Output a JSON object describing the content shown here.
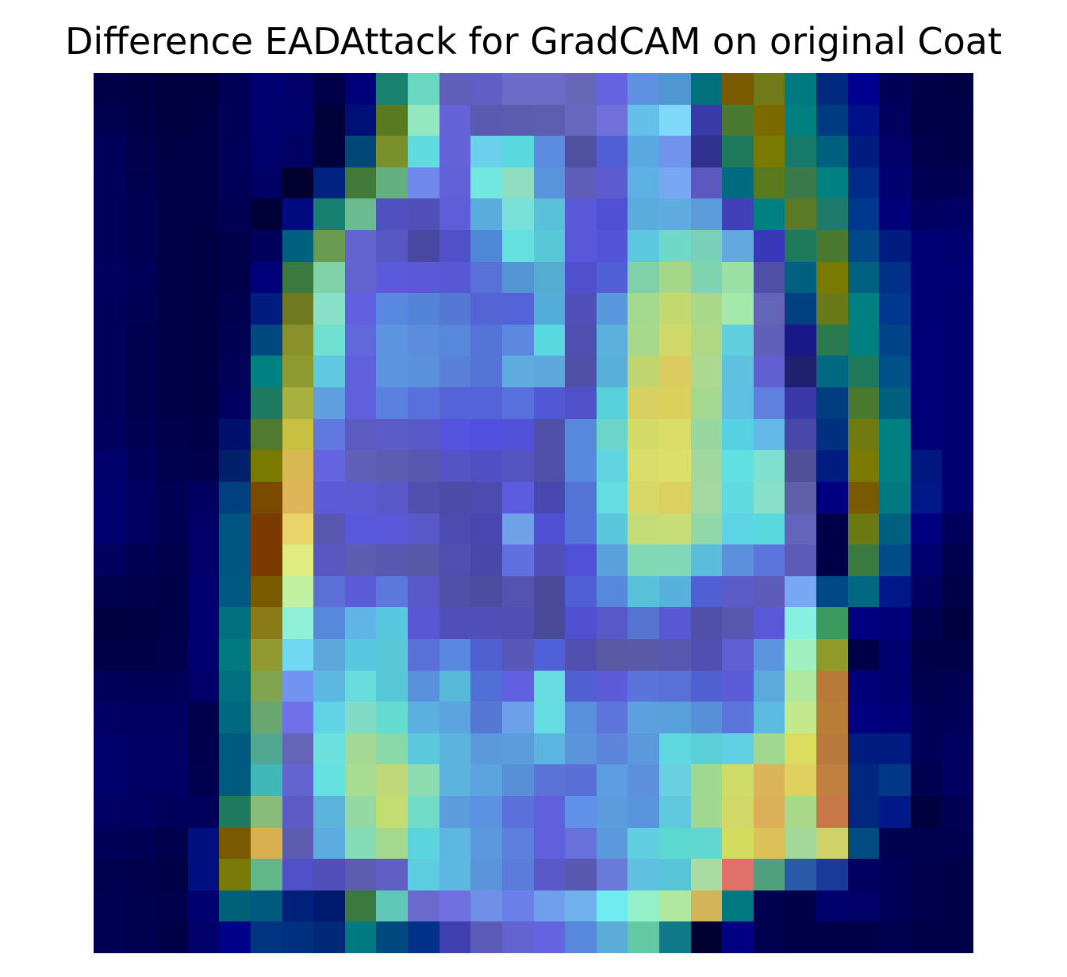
{
  "title": "Difference EADAttack for GradCAM on original Coat",
  "image": {
    "description_kind": "heatmap overlay",
    "grid_size": 28,
    "colormap": "jet-blended"
  },
  "rows": [
    [
      "#000048",
      "#000044",
      "#00003e",
      "#000040",
      "#000058",
      "#000070",
      "#000068",
      "#00004a",
      "#00007a",
      "#1a8070",
      "#6ad8c0",
      "#6060b8",
      "#6060c4",
      "#6c6cc8",
      "#6c6cc8",
      "#6868b8",
      "#6464e0",
      "#6090e0",
      "#5096d0",
      "#00707a",
      "#7a5a00",
      "#707a18",
      "#007a80",
      "#002a80",
      "#000090",
      "#000058",
      "#000048",
      "#000044"
    ],
    [
      "#000050",
      "#000048",
      "#000040",
      "#000044",
      "#000058",
      "#000070",
      "#00006c",
      "#00003a",
      "#001078",
      "#5a7a20",
      "#94e8c0",
      "#6464d8",
      "#5a5ab0",
      "#5c5cb0",
      "#5e5eb0",
      "#6868c0",
      "#7070d8",
      "#64c0e8",
      "#80d8f8",
      "#3a3aa8",
      "#4a7a30",
      "#7a6a00",
      "#008080",
      "#003a80",
      "#001088",
      "#00005e",
      "#000048",
      "#000048"
    ],
    [
      "#00005a",
      "#00004c",
      "#000044",
      "#000048",
      "#000058",
      "#00006c",
      "#000062",
      "#00003c",
      "#004878",
      "#7a902a",
      "#60dce0",
      "#6464d8",
      "#6ad0ec",
      "#5ad8e0",
      "#5c8ce0",
      "#5050a0",
      "#5060d4",
      "#5aa8e0",
      "#7094ec",
      "#30308e",
      "#1e7a5a",
      "#7a7a00",
      "#187a6a",
      "#006080",
      "#001c80",
      "#000068",
      "#00004c",
      "#000048"
    ],
    [
      "#00005c",
      "#000050",
      "#000048",
      "#000048",
      "#000058",
      "#000064",
      "#000030",
      "#002280",
      "#427a3a",
      "#64b080",
      "#7088ec",
      "#6060d8",
      "#70e8e0",
      "#90dcc0",
      "#5894dc",
      "#5e5eb8",
      "#5c5cd0",
      "#5cb0e4",
      "#78a8f4",
      "#5c58c0",
      "#006a80",
      "#5a7a20",
      "#3a7a4a",
      "#008080",
      "#002a88",
      "#000070",
      "#000054",
      "#000054"
    ],
    [
      "#00005c",
      "#000054",
      "#000048",
      "#000048",
      "#000054",
      "#000038",
      "#000a80",
      "#188070",
      "#6abc90",
      "#5050c0",
      "#5050b8",
      "#5e5ed8",
      "#5aacdc",
      "#78e0d8",
      "#58c0d8",
      "#5a5ad8",
      "#5050d4",
      "#5aacdc",
      "#60ace0",
      "#5c9cdc",
      "#4040b8",
      "#008080",
      "#5a7a28",
      "#1e7a6a",
      "#003890",
      "#00007a",
      "#000060",
      "#000064"
    ],
    [
      "#00005c",
      "#000054",
      "#000048",
      "#000044",
      "#00004a",
      "#00005c",
      "#006080",
      "#6a9a50",
      "#6464d0",
      "#5858c4",
      "#4848a0",
      "#5050c8",
      "#5088d8",
      "#64e0e0",
      "#58c8d8",
      "#5858d8",
      "#5454d8",
      "#5cc8e0",
      "#70d8c8",
      "#78d0b8",
      "#64a8e0",
      "#3838b8",
      "#1e7a5a",
      "#4a7a30",
      "#004888",
      "#001c80",
      "#000074",
      "#000070"
    ],
    [
      "#000060",
      "#000058",
      "#000048",
      "#000044",
      "#00004a",
      "#00007a",
      "#3a7a40",
      "#80d0a8",
      "#6464d0",
      "#5a5adc",
      "#5a5ad8",
      "#5858d4",
      "#5870d8",
      "#5294d4",
      "#54acd0",
      "#5050cc",
      "#5060d4",
      "#80d0a8",
      "#a4d888",
      "#80d4b0",
      "#9ce0a8",
      "#5050a8",
      "#006080",
      "#7a7a00",
      "#006080",
      "#003088",
      "#000074",
      "#000074"
    ],
    [
      "#00005c",
      "#000054",
      "#000048",
      "#000044",
      "#000050",
      "#001c80",
      "#707a20",
      "#88e0c8",
      "#6060e0",
      "#5888e0",
      "#5484d8",
      "#5478d4",
      "#5464d4",
      "#5464d8",
      "#54acd8",
      "#5050b8",
      "#5898dc",
      "#a4d88c",
      "#c4d870",
      "#a8d888",
      "#a4e8ac",
      "#6464b8",
      "#004080",
      "#6a7a18",
      "#008080",
      "#003890",
      "#000074",
      "#000070"
    ],
    [
      "#00005c",
      "#000050",
      "#000048",
      "#000044",
      "#000054",
      "#004880",
      "#8a902a",
      "#70e0d0",
      "#6068dc",
      "#5c94e0",
      "#5c8cdc",
      "#5888dc",
      "#5474d8",
      "#5c88e0",
      "#5ad8e0",
      "#5050b0",
      "#5cb0dc",
      "#a8d88c",
      "#d0d868",
      "#b0d884",
      "#60d0e0",
      "#6060b8",
      "#181888",
      "#2a7a50",
      "#008080",
      "#004488",
      "#000078",
      "#000070"
    ],
    [
      "#00005c",
      "#000050",
      "#000048",
      "#000044",
      "#000058",
      "#008080",
      "#8c9a30",
      "#60c8e0",
      "#6060dc",
      "#5c94e0",
      "#5a90dc",
      "#5a80d8",
      "#5474d8",
      "#60ace0",
      "#5ca8dc",
      "#5050a8",
      "#58b0d8",
      "#c0d470",
      "#dccc60",
      "#acd890",
      "#60c0e0",
      "#6060d0",
      "#202070",
      "#006880",
      "#1e7a5a",
      "#00508a",
      "#000078",
      "#000070"
    ],
    [
      "#00005c",
      "#000050",
      "#000048",
      "#000044",
      "#000060",
      "#1e7a60",
      "#a8b040",
      "#60a0e0",
      "#6060dc",
      "#5a80e0",
      "#5870dc",
      "#5464d8",
      "#5464d8",
      "#5870dc",
      "#5058d4",
      "#5050c8",
      "#58d0dc",
      "#d8d060",
      "#dcd05c",
      "#a4d890",
      "#60c0e4",
      "#6080e0",
      "#3838a8",
      "#003c80",
      "#4a7a30",
      "#006080",
      "#000078",
      "#000070"
    ],
    [
      "#000060",
      "#000054",
      "#00004c",
      "#000048",
      "#00106c",
      "#507a30",
      "#c8c040",
      "#6078e0",
      "#5c5cc0",
      "#5c5cc8",
      "#5858c8",
      "#5454e0",
      "#5050e0",
      "#5050d8",
      "#5050a8",
      "#5888dc",
      "#6cd4c8",
      "#d4dc68",
      "#dcdc68",
      "#98d8a0",
      "#58d0e4",
      "#64b8e8",
      "#4848a8",
      "#003080",
      "#707a10",
      "#008080",
      "#000078",
      "#000070"
    ],
    [
      "#00006a",
      "#00005a",
      "#000050",
      "#00004c",
      "#00206c",
      "#7a7a00",
      "#d8b850",
      "#6464e0",
      "#6060b8",
      "#5c5cb0",
      "#5858b0",
      "#5454c4",
      "#5050c4",
      "#5454c0",
      "#5050a8",
      "#5888dc",
      "#60d4e0",
      "#d8dc68",
      "#dce068",
      "#a0d8a0",
      "#60e0e0",
      "#80e0d0",
      "#505098",
      "#001c80",
      "#7a7a00",
      "#008080",
      "#001880",
      "#000070"
    ],
    [
      "#000070",
      "#000060",
      "#000054",
      "#000060",
      "#004080",
      "#7a4a00",
      "#e0b458",
      "#5c5cd8",
      "#5c5cd4",
      "#5858c8",
      "#5050b0",
      "#4c4ca8",
      "#4c4cb0",
      "#5c5ce0",
      "#4848b0",
      "#5474d8",
      "#64dce0",
      "#d8d868",
      "#dcd060",
      "#a4d8a0",
      "#60dce0",
      "#88e0c8",
      "#6060a8",
      "#000080",
      "#7a5a00",
      "#007a80",
      "#001888",
      "#000070"
    ],
    [
      "#000070",
      "#000060",
      "#000054",
      "#000068",
      "#005680",
      "#7a3a00",
      "#e8d468",
      "#5858b0",
      "#5858dc",
      "#5858d8",
      "#5858c8",
      "#4c4cb0",
      "#4848b0",
      "#70a0e8",
      "#5050d4",
      "#5474dc",
      "#5ac8dc",
      "#c4dc78",
      "#c8dc78",
      "#90d8a8",
      "#5cd4e4",
      "#5ad8e0",
      "#6464bc",
      "#000048",
      "#6a7a10",
      "#006080",
      "#000080",
      "#00005c"
    ],
    [
      "#000060",
      "#000054",
      "#00004c",
      "#000068",
      "#005680",
      "#7a3a00",
      "#e0ec80",
      "#5858c0",
      "#5c5cb0",
      "#5858b0",
      "#5858a8",
      "#5050b0",
      "#4848a8",
      "#6070e0",
      "#5050b8",
      "#5050d8",
      "#5aa0dc",
      "#80d8b4",
      "#80d8b8",
      "#5cbcdc",
      "#5c90dc",
      "#5c74dc",
      "#5c5cb8",
      "#000048",
      "#3a7a40",
      "#004c88",
      "#000070",
      "#000050"
    ],
    [
      "#000050",
      "#00004c",
      "#000048",
      "#000070",
      "#005880",
      "#7a5a00",
      "#c0f0a0",
      "#5c70d8",
      "#5c5cd8",
      "#5c78dc",
      "#5858c8",
      "#5050a8",
      "#4c4ca0",
      "#5454b0",
      "#4a4a98",
      "#5060d4",
      "#5888dc",
      "#58c0d8",
      "#58b0dc",
      "#5060d4",
      "#5c5cc8",
      "#5c5cb8",
      "#78a8f4",
      "#004888",
      "#006880",
      "#001888",
      "#000060",
      "#000048"
    ],
    [
      "#000040",
      "#000044",
      "#00004a",
      "#000070",
      "#007080",
      "#8a7a18",
      "#90f0d8",
      "#5888dc",
      "#60b4e8",
      "#58c8e0",
      "#5858d4",
      "#5050b8",
      "#5050b8",
      "#5050b4",
      "#4a4a98",
      "#5050d0",
      "#5858c8",
      "#5474d0",
      "#5858d4",
      "#5050a8",
      "#5858b0",
      "#5858d8",
      "#88f0e0",
      "#3a9a60",
      "#000080",
      "#000078",
      "#000050",
      "#000040"
    ],
    [
      "#000048",
      "#000048",
      "#00004c",
      "#000070",
      "#007a80",
      "#909a30",
      "#70d8f0",
      "#5ca8dc",
      "#58c8e0",
      "#58c8d8",
      "#5870d8",
      "#5888e0",
      "#5060d0",
      "#5858b8",
      "#5060d8",
      "#5050b0",
      "#5a5aa4",
      "#5a5aa8",
      "#5858b0",
      "#5050b0",
      "#6060d4",
      "#5c94e0",
      "#a0f0c0",
      "#909a28",
      "#000048",
      "#000070",
      "#000048",
      "#000048"
    ],
    [
      "#00005a",
      "#000058",
      "#000058",
      "#000068",
      "#007080",
      "#80a450",
      "#7094f0",
      "#5cb8e0",
      "#68dcdc",
      "#58c8d8",
      "#5890dc",
      "#58b8d8",
      "#5070d8",
      "#6060e0",
      "#68dce0",
      "#5060d0",
      "#5c5cd8",
      "#5a74dc",
      "#5870d8",
      "#5060d0",
      "#5c5cd8",
      "#5caadc",
      "#b0e8a0",
      "#b87a38",
      "#000078",
      "#000070",
      "#000050",
      "#000054"
    ],
    [
      "#000064",
      "#000060",
      "#000060",
      "#00004c",
      "#006880",
      "#68a870",
      "#7070e8",
      "#60d4e4",
      "#80dcc4",
      "#64dcd0",
      "#5cb0e0",
      "#5ca4e0",
      "#5478d4",
      "#6ca0e8",
      "#64dce0",
      "#5890dc",
      "#5c74dc",
      "#5ca0e0",
      "#58a0dc",
      "#5890d8",
      "#5c74dc",
      "#5cbce0",
      "#c4e88c",
      "#b87e38",
      "#000080",
      "#000078",
      "#000058",
      "#000058"
    ],
    [
      "#00006c",
      "#000064",
      "#000064",
      "#00004c",
      "#005a80",
      "#50a890",
      "#6464b8",
      "#6ce0dc",
      "#a4d894",
      "#88d8a8",
      "#5cc8dc",
      "#5cb4dc",
      "#5c98dc",
      "#5c9cdc",
      "#5cb4e0",
      "#5c94dc",
      "#5c84d8",
      "#5c98dc",
      "#60d8e0",
      "#5cd0d8",
      "#60d0e4",
      "#a0d890",
      "#dcdc60",
      "#b87a3c",
      "#001c80",
      "#001c80",
      "#000058",
      "#000060"
    ],
    [
      "#00006c",
      "#000064",
      "#000064",
      "#000050",
      "#005a80",
      "#40b8b8",
      "#6464d0",
      "#64e0e0",
      "#a8dc90",
      "#c0d878",
      "#8cdcb0",
      "#5cb4dc",
      "#5ca4e0",
      "#5890d8",
      "#5c74d8",
      "#5a6ed8",
      "#5c9ce0",
      "#5c90dc",
      "#68d0e0",
      "#a0d890",
      "#d0dc68",
      "#dcb458",
      "#e0d060",
      "#c08040",
      "#002880",
      "#003888",
      "#000050",
      "#000060"
    ],
    [
      "#000064",
      "#000060",
      "#00005c",
      "#00005c",
      "#207a60",
      "#88bc78",
      "#5c5cc4",
      "#5cb4dc",
      "#94d8a4",
      "#c4dc74",
      "#70dcc8",
      "#5c9cdc",
      "#5c90e0",
      "#5c70dc",
      "#6060dc",
      "#6090e8",
      "#5c9cdc",
      "#5894dc",
      "#60c8dc",
      "#a0d890",
      "#d0d868",
      "#dcb058",
      "#a8d888",
      "#c87848",
      "#002880",
      "#001888",
      "#000040",
      "#000054"
    ],
    [
      "#000058",
      "#000054",
      "#00004c",
      "#001080",
      "#7a5a00",
      "#d8b050",
      "#5c5cb0",
      "#5cace0",
      "#84dcb8",
      "#a4d88c",
      "#5cd4e0",
      "#5cb8e0",
      "#5c98dc",
      "#5c80dc",
      "#6060dc",
      "#6870dc",
      "#5c98dc",
      "#60d0e0",
      "#5cd8d0",
      "#60d8d0",
      "#d4dc60",
      "#dcc058",
      "#a4d898",
      "#d0d468",
      "#004c80",
      "#000050",
      "#000050",
      "#000050"
    ],
    [
      "#000050",
      "#00004c",
      "#000048",
      "#001080",
      "#7a7a08",
      "#60b888",
      "#5050c8",
      "#5050b8",
      "#5c5cb0",
      "#6060c4",
      "#5ccce0",
      "#5cb8e0",
      "#5c94dc",
      "#5c7cdc",
      "#5858c8",
      "#5858b0",
      "#6a7ad8",
      "#60c0e0",
      "#58c4d8",
      "#a8dca0",
      "#e07068",
      "#50a080",
      "#2a5aa8",
      "#1a3a98",
      "#000060",
      "#000058",
      "#00004c",
      "#000048"
    ],
    [
      "#000054",
      "#000050",
      "#00004c",
      "#000070",
      "#006078",
      "#005a80",
      "#00207a",
      "#001a70",
      "#3a7a40",
      "#60c8b8",
      "#6a6acc",
      "#7070e0",
      "#7090e8",
      "#6a80e8",
      "#70a0ec",
      "#70b0ec",
      "#70ecf0",
      "#94f0c8",
      "#b0e8a0",
      "#d4b458",
      "#007a80",
      "#000050",
      "#000048",
      "#00006c",
      "#000068",
      "#000058",
      "#00004c",
      "#000048"
    ],
    [
      "#000054",
      "#000050",
      "#000048",
      "#000068",
      "#000088",
      "#003480",
      "#003080",
      "#002a78",
      "#007a80",
      "#004880",
      "#003088",
      "#4040b0",
      "#5c5cb8",
      "#6464d0",
      "#6464e0",
      "#5888dc",
      "#5cacd8",
      "#64c8a4",
      "#107a8a",
      "#000030",
      "#000080",
      "#000050",
      "#000048",
      "#000048",
      "#000048",
      "#000050",
      "#000048",
      "#000048"
    ]
  ]
}
